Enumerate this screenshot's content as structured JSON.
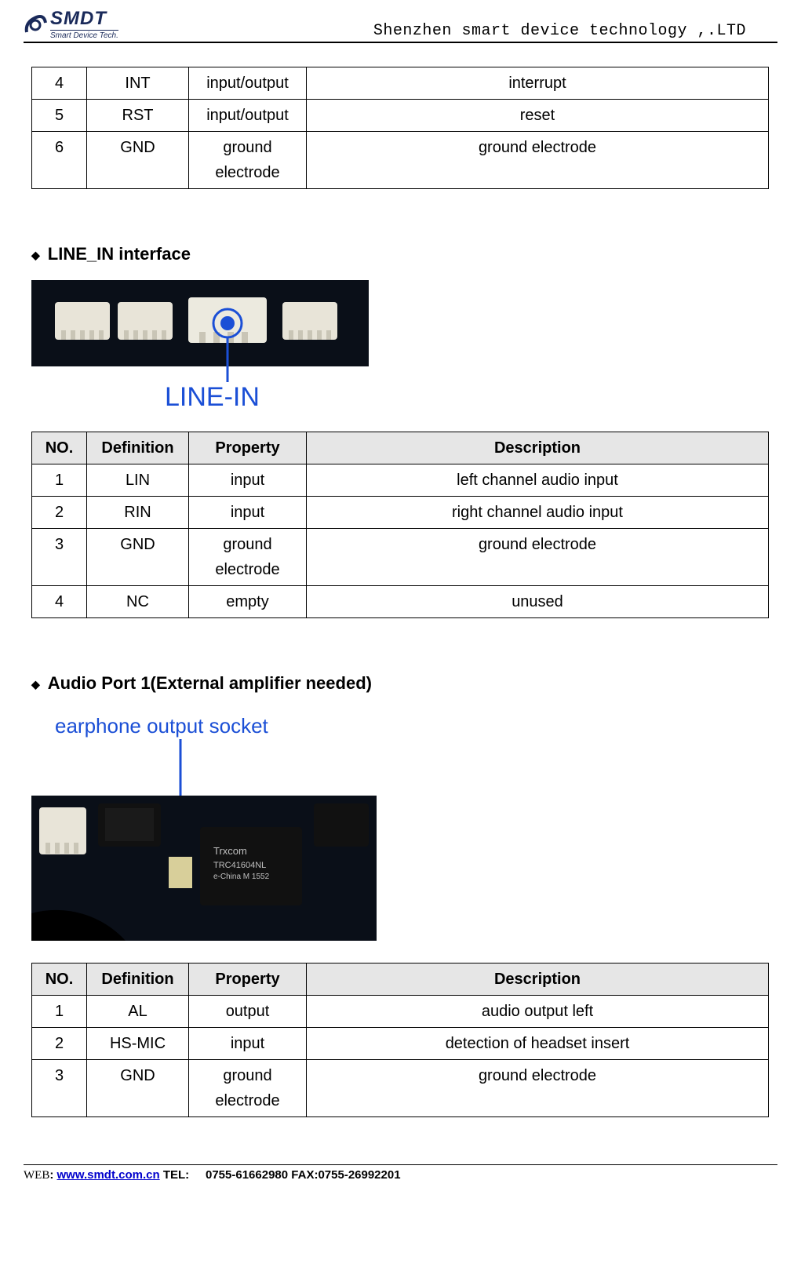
{
  "header": {
    "logo_main": "SMDT",
    "logo_sub": "Smart Device Tech.",
    "company": "Shenzhen smart device technology ,.LTD"
  },
  "table1": {
    "rows": [
      {
        "no": "4",
        "def": "INT",
        "prop": "input/output",
        "desc": "interrupt"
      },
      {
        "no": "5",
        "def": "RST",
        "prop": "input/output",
        "desc": "reset"
      },
      {
        "no": "6",
        "def": "GND",
        "prop": "ground electrode",
        "desc": "ground electrode"
      }
    ]
  },
  "section2": {
    "title": "LINE_IN interface",
    "img_label": "LINE-IN",
    "columns": [
      "NO.",
      "Definition",
      "Property",
      "Description"
    ],
    "rows": [
      {
        "no": "1",
        "def": "LIN",
        "prop": "input",
        "desc": "left channel audio input"
      },
      {
        "no": "2",
        "def": "RIN",
        "prop": "input",
        "desc": "right channel audio input"
      },
      {
        "no": "3",
        "def": "GND",
        "prop": "ground electrode",
        "desc": "ground electrode"
      },
      {
        "no": "4",
        "def": "NC",
        "prop": "empty",
        "desc": "unused"
      }
    ]
  },
  "section3": {
    "title": "Audio Port 1(External amplifier needed)",
    "img_label": "earphone output socket",
    "columns": [
      "NO.",
      "Definition",
      "Property",
      "Description"
    ],
    "rows": [
      {
        "no": "1",
        "def": "AL",
        "prop": "output",
        "desc": "audio output left"
      },
      {
        "no": "2",
        "def": "HS-MIC",
        "prop": "input",
        "desc": "detection of headset insert"
      },
      {
        "no": "3",
        "def": "GND",
        "prop": "ground electrode",
        "desc": "ground electrode"
      }
    ]
  },
  "footer": {
    "web_label": "WEB",
    "url": "www.smdt.com.cn",
    "tel_label": "TEL:",
    "tel": "0755-61662980",
    "fax_label": "FAX:",
    "fax": "0755-26992201"
  }
}
